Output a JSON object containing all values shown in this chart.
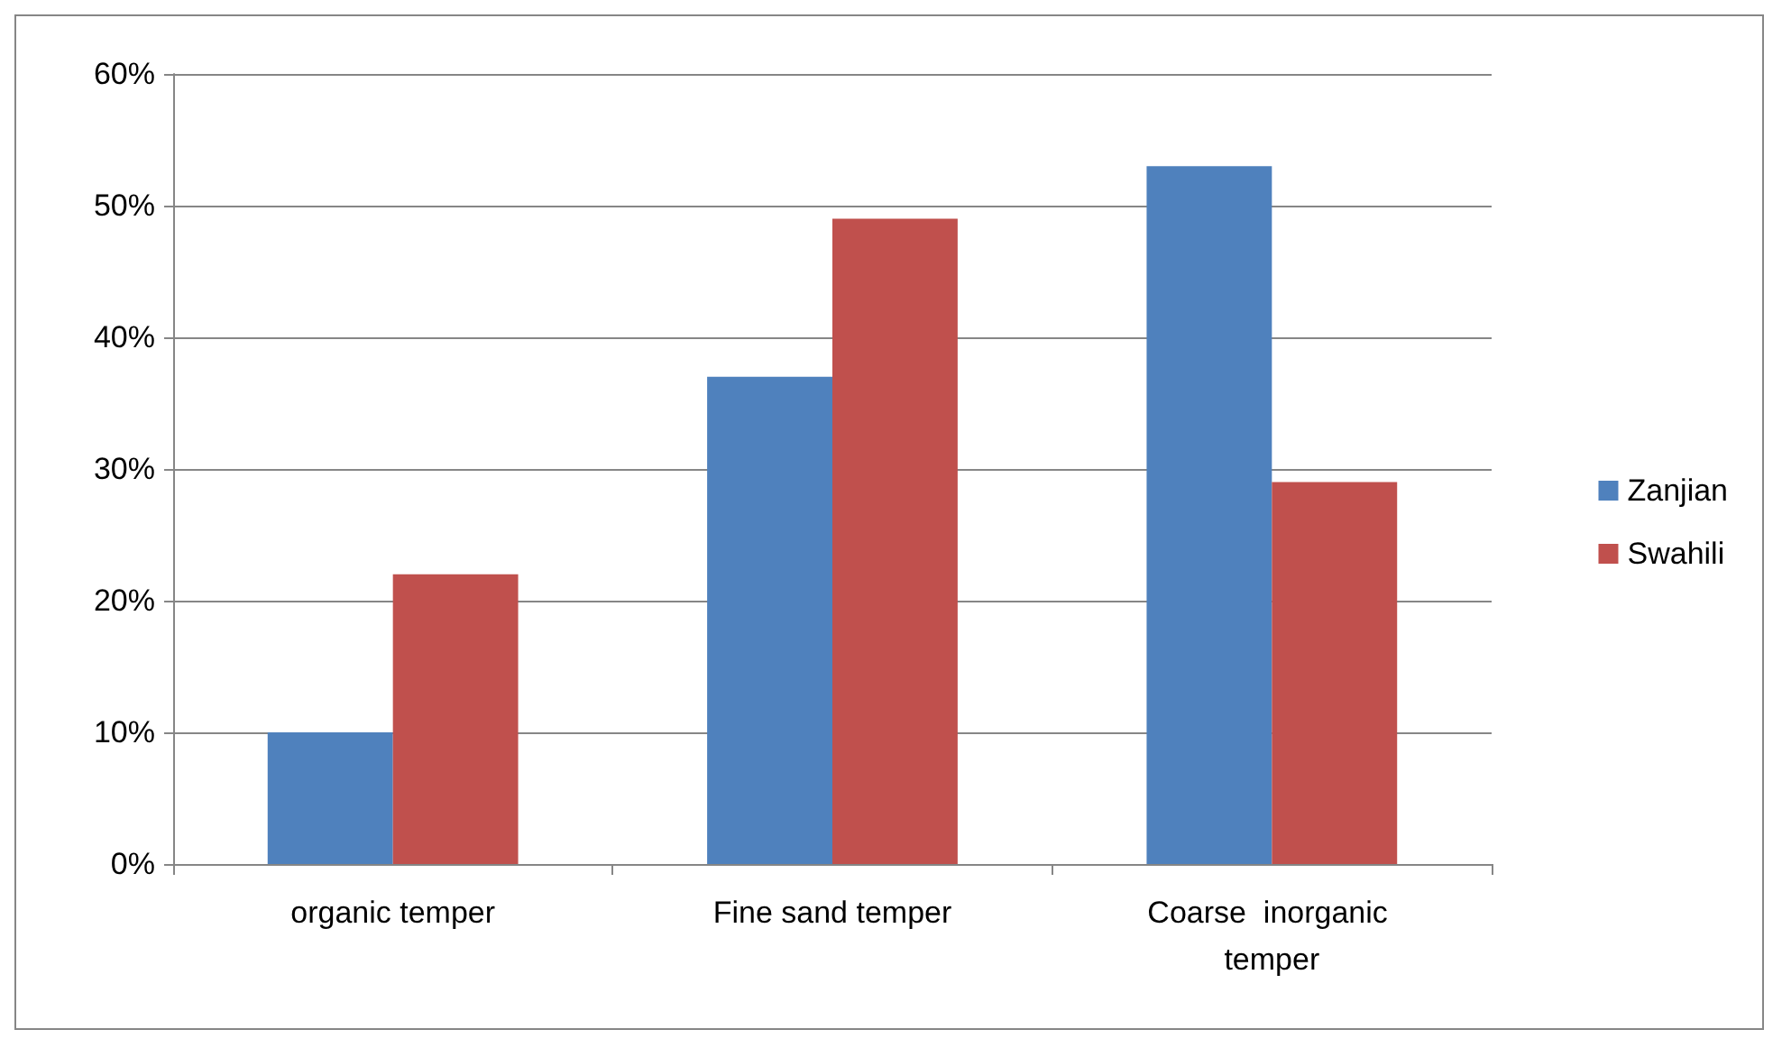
{
  "chart_data": {
    "type": "bar",
    "categories": [
      "organic temper",
      "Fine sand temper",
      "Coarse  inorganic temper"
    ],
    "series": [
      {
        "name": "Zanjian",
        "color": "#4f81bd",
        "values": [
          10,
          37,
          53
        ]
      },
      {
        "name": "Swahili",
        "color": "#c0504d",
        "values": [
          22,
          49,
          29
        ]
      }
    ],
    "ylim": [
      0,
      60
    ],
    "yticks": [
      {
        "value": 0,
        "label": "0%"
      },
      {
        "value": 10,
        "label": "10%"
      },
      {
        "value": 20,
        "label": "20%"
      },
      {
        "value": 30,
        "label": "30%"
      },
      {
        "value": 40,
        "label": "40%"
      },
      {
        "value": 50,
        "label": "50%"
      },
      {
        "value": 60,
        "label": "60%"
      }
    ],
    "grid": "y",
    "legend": "right"
  }
}
